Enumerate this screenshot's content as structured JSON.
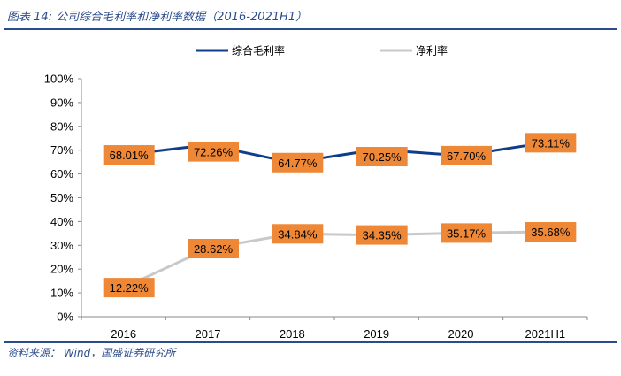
{
  "header": {
    "title": "图表 14:  公司综合毛利率和净利率数据（2016-2021H1）"
  },
  "footer": {
    "source": "资料来源：  Wind，国盛证券研究所"
  },
  "chart_data": {
    "type": "line",
    "categories": [
      "2016",
      "2017",
      "2018",
      "2019",
      "2020",
      "2021H1"
    ],
    "ylim": [
      0,
      100
    ],
    "yticks": [
      0,
      10,
      20,
      30,
      40,
      50,
      60,
      70,
      80,
      90,
      100
    ],
    "ytick_labels": [
      "0%",
      "10%",
      "20%",
      "30%",
      "40%",
      "50%",
      "60%",
      "70%",
      "80%",
      "90%",
      "100%"
    ],
    "grid": false,
    "legend_position": "top-center",
    "series": [
      {
        "name": "综合毛利率",
        "color": "#0f3d8c",
        "values": [
          68.01,
          72.26,
          64.77,
          70.25,
          67.7,
          73.11
        ],
        "labels": [
          "68.01%",
          "72.26%",
          "64.77%",
          "70.25%",
          "67.70%",
          "73.11%"
        ]
      },
      {
        "name": "净利率",
        "color": "#c9c9c9",
        "values": [
          12.22,
          28.62,
          34.84,
          34.35,
          35.17,
          35.68
        ],
        "labels": [
          "12.22%",
          "28.62%",
          "34.84%",
          "34.35%",
          "35.17%",
          "35.68%"
        ]
      }
    ],
    "label_box_color": "#ee8736"
  }
}
